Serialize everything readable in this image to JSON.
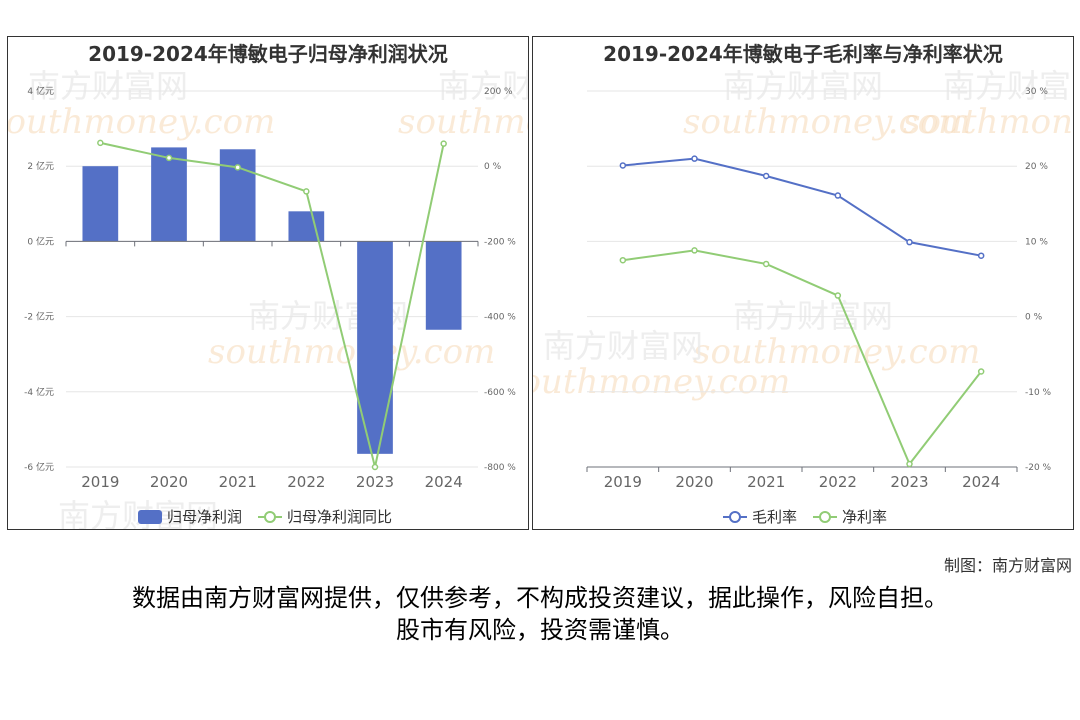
{
  "footer": {
    "credit": "制图：南方财富网",
    "disclaimer_line1": "数据由南方财富网提供，仅供参考，不构成投资建议，据此操作，风险自担。",
    "disclaimer_line2": "股市有风险，投资需谨慎。"
  },
  "watermark": {
    "text_cn": "南方财富网",
    "text_en": "southmoney.com"
  },
  "chart_data": [
    {
      "type": "bar",
      "title": "2019-2024年博敏电子归母净利润状况",
      "categories": [
        "2019",
        "2020",
        "2021",
        "2022",
        "2023",
        "2024"
      ],
      "series": [
        {
          "name": "归母净利润",
          "type": "bar",
          "axis": "left",
          "color": "#5470c6",
          "values": [
            2.0,
            2.5,
            2.45,
            0.8,
            -5.65,
            -2.35
          ]
        },
        {
          "name": "归母净利润同比",
          "type": "line",
          "axis": "right",
          "color": "#91cc75",
          "values": [
            62,
            22,
            -3,
            -67,
            -800,
            60
          ]
        }
      ],
      "y_left": {
        "ticks": [
          "4 亿元",
          "2 亿元",
          "0 亿元",
          "-2 亿元",
          "-4 亿元",
          "-6 亿元"
        ],
        "range": [
          -6,
          4
        ],
        "unit": "亿元"
      },
      "y_right": {
        "ticks": [
          "200 %",
          "0 %",
          "-200 %",
          "-400 %",
          "-600 %",
          "-800 %"
        ],
        "range": [
          -800,
          200
        ],
        "unit": "%"
      },
      "grid": true,
      "legend_position": "bottom"
    },
    {
      "type": "line",
      "title": "2019-2024年博敏电子毛利率与净利率状况",
      "categories": [
        "2019",
        "2020",
        "2021",
        "2022",
        "2023",
        "2024"
      ],
      "series": [
        {
          "name": "毛利率",
          "color": "#5470c6",
          "values": [
            20.1,
            21.0,
            18.7,
            16.1,
            9.9,
            8.1
          ]
        },
        {
          "name": "净利率",
          "color": "#91cc75",
          "values": [
            7.5,
            8.8,
            7.0,
            2.8,
            -19.6,
            -7.3
          ]
        }
      ],
      "y_right": {
        "ticks": [
          "30 %",
          "20 %",
          "10 %",
          "0 %",
          "-10 %",
          "-20 %"
        ],
        "range": [
          -20,
          30
        ],
        "unit": "%"
      },
      "grid": true,
      "legend_position": "bottom"
    }
  ]
}
